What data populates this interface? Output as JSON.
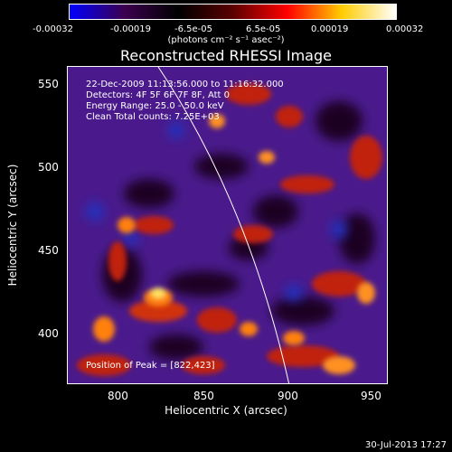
{
  "colorbar": {
    "ticks": [
      "-0.00032",
      "-0.00019",
      "-6.5e-05",
      "6.5e-05",
      "0.00019",
      "0.00032"
    ],
    "unit": "(photons cm⁻² s⁻¹ asec⁻²)",
    "colors": [
      "#0000ff",
      "#3c0050",
      "#000000",
      "#5a0000",
      "#ff0000",
      "#ffcc00",
      "#ffffff"
    ]
  },
  "title": "Reconstructed RHESSI Image",
  "info": {
    "time": "22-Dec-2009 11:13:56.000 to 11:16:32.000",
    "detectors": "Detectors: 4F 5F 6F 7F 8F, Att 0",
    "energy": "Energy Range: 25.0 - 50.0 keV",
    "clean": "Clean     Total counts: 7.25E+03",
    "peak": "Position of Peak = [822,423]"
  },
  "axes": {
    "xlabel": "Heliocentric X (arcsec)",
    "ylabel": "Heliocentric Y (arcsec)",
    "xticks": [
      "800",
      "850",
      "900",
      "950"
    ],
    "yticks": [
      "400",
      "450",
      "500",
      "550"
    ],
    "xlim": [
      765,
      960
    ],
    "ylim": [
      365,
      562
    ]
  },
  "footer": "30-Jul-2013 17:27"
}
